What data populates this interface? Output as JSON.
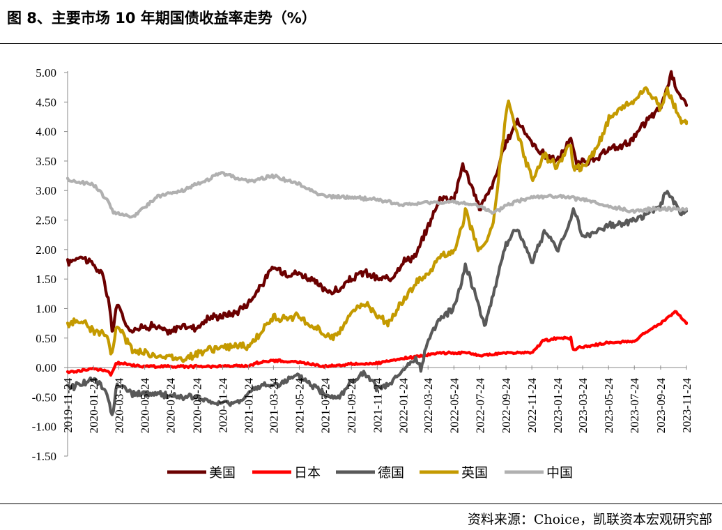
{
  "title": "图 8、主要市场 10 年期国债收益率走势（%）",
  "source": "资料来源：Choice，凯联资本宏观研究部",
  "chart_data": {
    "type": "line",
    "title": "图 8、主要市场 10 年期国债收益率走势（%）",
    "ylim": [
      -1.5,
      5.0
    ],
    "yticks": [
      "5.00",
      "4.50",
      "4.00",
      "3.50",
      "3.00",
      "2.50",
      "2.00",
      "1.50",
      "1.00",
      "0.50",
      "0.00",
      "-0.50",
      "-1.00",
      "-1.50"
    ],
    "xlim": [
      "2019-11-24",
      "2023-11-24"
    ],
    "xticks": [
      "2019-11-24",
      "2020-01-24",
      "2020-03-24",
      "2020-05-24",
      "2020-07-24",
      "2020-09-24",
      "2020-11-24",
      "2021-01-24",
      "2021-03-24",
      "2021-05-24",
      "2021-07-24",
      "2021-09-24",
      "2021-11-24",
      "2022-01-24",
      "2022-03-24",
      "2022-05-24",
      "2022-07-24",
      "2022-09-24",
      "2022-11-24",
      "2023-01-24",
      "2023-03-24",
      "2023-05-24",
      "2023-07-24",
      "2023-09-24",
      "2023-11-24"
    ],
    "legend_position": "bottom",
    "grid": false,
    "series": [
      {
        "name": "美国",
        "color": "#6b0000",
        "x": [
          "2019-11-24",
          "2019-12-24",
          "2020-01-24",
          "2020-02-15",
          "2020-03-01",
          "2020-03-09",
          "2020-03-19",
          "2020-04-15",
          "2020-05-24",
          "2020-06-10",
          "2020-07-24",
          "2020-08-10",
          "2020-09-24",
          "2020-10-24",
          "2020-11-24",
          "2020-12-24",
          "2021-01-24",
          "2021-02-24",
          "2021-03-24",
          "2021-04-24",
          "2021-05-24",
          "2021-06-24",
          "2021-07-24",
          "2021-08-24",
          "2021-09-24",
          "2021-10-24",
          "2021-11-24",
          "2021-12-24",
          "2022-01-24",
          "2022-02-24",
          "2022-03-24",
          "2022-04-24",
          "2022-05-24",
          "2022-06-14",
          "2022-07-24",
          "2022-08-24",
          "2022-09-24",
          "2022-10-21",
          "2022-11-24",
          "2022-12-24",
          "2023-01-24",
          "2023-02-24",
          "2023-03-10",
          "2023-03-24",
          "2023-04-24",
          "2023-05-24",
          "2023-06-24",
          "2023-07-24",
          "2023-08-24",
          "2023-09-24",
          "2023-10-19",
          "2023-11-10",
          "2023-11-24"
        ],
        "values": [
          1.77,
          1.9,
          1.75,
          1.55,
          1.1,
          0.55,
          1.1,
          0.65,
          0.68,
          0.72,
          0.58,
          0.7,
          0.68,
          0.85,
          0.88,
          0.93,
          1.1,
          1.4,
          1.7,
          1.6,
          1.6,
          1.48,
          1.3,
          1.3,
          1.5,
          1.62,
          1.5,
          1.5,
          1.8,
          1.9,
          2.4,
          2.9,
          2.85,
          3.45,
          2.7,
          3.1,
          3.8,
          4.2,
          3.8,
          3.6,
          3.5,
          3.9,
          3.4,
          3.5,
          3.5,
          3.7,
          3.75,
          3.9,
          4.2,
          4.4,
          4.98,
          4.6,
          4.45
        ]
      },
      {
        "name": "日本",
        "color": "#ff0000",
        "x": [
          "2019-11-24",
          "2020-01-24",
          "2020-02-24",
          "2020-03-05",
          "2020-03-18",
          "2020-05-24",
          "2020-09-24",
          "2021-01-24",
          "2021-02-24",
          "2021-03-24",
          "2021-05-24",
          "2021-07-24",
          "2021-09-24",
          "2021-11-24",
          "2022-01-24",
          "2022-03-24",
          "2022-04-24",
          "2022-06-24",
          "2022-07-24",
          "2022-09-24",
          "2022-11-24",
          "2022-12-20",
          "2023-01-24",
          "2023-02-24",
          "2023-03-01",
          "2023-03-24",
          "2023-05-24",
          "2023-07-24",
          "2023-08-24",
          "2023-09-24",
          "2023-10-30",
          "2023-11-24"
        ],
        "values": [
          -0.08,
          -0.02,
          -0.05,
          -0.13,
          0.08,
          0.02,
          0.02,
          0.03,
          0.1,
          0.12,
          0.09,
          0.02,
          0.06,
          0.07,
          0.15,
          0.22,
          0.25,
          0.25,
          0.2,
          0.25,
          0.25,
          0.45,
          0.5,
          0.5,
          0.3,
          0.35,
          0.42,
          0.45,
          0.62,
          0.75,
          0.95,
          0.76
        ]
      },
      {
        "name": "德国",
        "color": "#595959",
        "x": [
          "2019-11-24",
          "2020-01-24",
          "2020-02-24",
          "2020-03-09",
          "2020-03-19",
          "2020-04-24",
          "2020-06-24",
          "2020-08-24",
          "2020-09-24",
          "2020-10-24",
          "2020-12-24",
          "2021-02-24",
          "2021-03-24",
          "2021-05-24",
          "2021-07-24",
          "2021-08-24",
          "2021-09-24",
          "2021-10-24",
          "2021-11-24",
          "2021-12-24",
          "2022-01-24",
          "2022-02-24",
          "2022-03-07",
          "2022-03-24",
          "2022-04-24",
          "2022-05-24",
          "2022-06-21",
          "2022-07-24",
          "2022-08-05",
          "2022-09-24",
          "2022-10-21",
          "2022-11-24",
          "2022-12-24",
          "2023-01-24",
          "2023-02-24",
          "2023-03-01",
          "2023-03-24",
          "2023-05-24",
          "2023-07-24",
          "2023-08-24",
          "2023-09-24",
          "2023-10-10",
          "2023-11-10",
          "2023-11-24"
        ],
        "values": [
          -0.35,
          -0.2,
          -0.4,
          -0.85,
          -0.25,
          -0.45,
          -0.45,
          -0.5,
          -0.5,
          -0.6,
          -0.6,
          -0.3,
          -0.3,
          -0.15,
          -0.45,
          -0.5,
          -0.25,
          -0.1,
          -0.35,
          -0.3,
          -0.05,
          0.15,
          -0.05,
          0.5,
          0.85,
          1.0,
          1.75,
          1.0,
          0.7,
          2.1,
          2.35,
          1.8,
          2.3,
          2.0,
          2.5,
          2.75,
          2.2,
          2.4,
          2.5,
          2.6,
          2.75,
          3.0,
          2.6,
          2.65
        ]
      },
      {
        "name": "英国",
        "color": "#c49a00",
        "x": [
          "2019-11-24",
          "2019-12-24",
          "2020-01-24",
          "2020-02-24",
          "2020-03-09",
          "2020-03-19",
          "2020-04-24",
          "2020-06-24",
          "2020-08-24",
          "2020-09-24",
          "2020-11-24",
          "2021-01-24",
          "2021-03-24",
          "2021-05-24",
          "2021-07-24",
          "2021-08-24",
          "2021-09-24",
          "2021-10-24",
          "2021-11-24",
          "2021-12-24",
          "2022-01-24",
          "2022-02-24",
          "2022-03-24",
          "2022-04-24",
          "2022-05-24",
          "2022-06-21",
          "2022-07-24",
          "2022-08-24",
          "2022-09-28",
          "2022-10-10",
          "2022-11-24",
          "2022-12-24",
          "2023-01-24",
          "2023-02-24",
          "2023-03-01",
          "2023-03-24",
          "2023-04-24",
          "2023-05-24",
          "2023-06-24",
          "2023-07-24",
          "2023-08-17",
          "2023-09-24",
          "2023-10-10",
          "2023-11-10",
          "2023-11-24"
        ],
        "values": [
          0.72,
          0.82,
          0.6,
          0.55,
          0.2,
          0.75,
          0.3,
          0.2,
          0.15,
          0.25,
          0.35,
          0.35,
          0.85,
          0.85,
          0.55,
          0.55,
          0.95,
          1.1,
          0.9,
          0.75,
          1.15,
          1.45,
          1.6,
          1.9,
          1.95,
          2.65,
          1.95,
          2.4,
          4.5,
          4.2,
          3.2,
          3.6,
          3.4,
          3.8,
          3.4,
          3.4,
          3.7,
          4.2,
          4.4,
          4.5,
          4.75,
          4.4,
          4.7,
          4.2,
          4.17
        ]
      },
      {
        "name": "中国",
        "color": "#b0b0b0",
        "x": [
          "2019-11-24",
          "2020-01-24",
          "2020-02-24",
          "2020-03-09",
          "2020-04-24",
          "2020-06-24",
          "2020-08-24",
          "2020-10-24",
          "2020-11-24",
          "2021-01-24",
          "2021-03-24",
          "2021-05-24",
          "2021-07-24",
          "2021-09-24",
          "2021-11-24",
          "2022-01-24",
          "2022-03-24",
          "2022-05-24",
          "2022-07-24",
          "2022-08-24",
          "2022-09-24",
          "2022-11-24",
          "2023-01-24",
          "2023-03-24",
          "2023-05-24",
          "2023-07-24",
          "2023-09-24",
          "2023-11-24"
        ],
        "values": [
          3.18,
          3.1,
          2.85,
          2.65,
          2.55,
          2.9,
          3.0,
          3.2,
          3.3,
          3.15,
          3.25,
          3.1,
          2.9,
          2.88,
          2.85,
          2.75,
          2.8,
          2.8,
          2.75,
          2.6,
          2.75,
          2.9,
          2.9,
          2.85,
          2.72,
          2.65,
          2.7,
          2.68
        ]
      }
    ]
  }
}
